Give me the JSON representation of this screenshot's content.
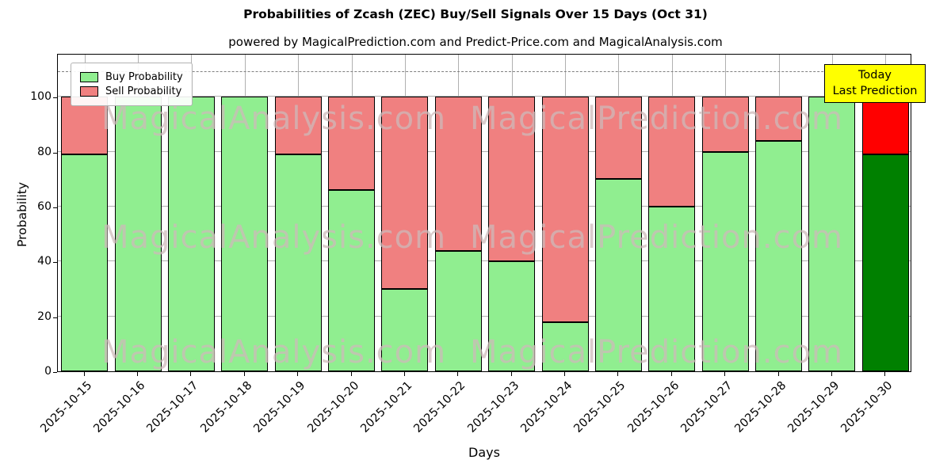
{
  "chart_data": {
    "type": "bar",
    "stacked": true,
    "title": "Probabilities of Zcash (ZEC) Buy/Sell Signals Over 15 Days (Oct 31)",
    "subtitle": "powered by MagicalPrediction.com and Predict-Price.com and MagicalAnalysis.com",
    "xlabel": "Days",
    "ylabel": "Probability",
    "categories": [
      "2025-10-15",
      "2025-10-16",
      "2025-10-17",
      "2025-10-18",
      "2025-10-19",
      "2025-10-20",
      "2025-10-21",
      "2025-10-22",
      "2025-10-23",
      "2025-10-24",
      "2025-10-25",
      "2025-10-26",
      "2025-10-27",
      "2025-10-28",
      "2025-10-29",
      "2025-10-30"
    ],
    "series": [
      {
        "name": "Buy Probability",
        "color": "#90EE90",
        "today_color": "#008000",
        "values": [
          79,
          100,
          100,
          100,
          79,
          66,
          30,
          44,
          40,
          18,
          70,
          60,
          80,
          84,
          100,
          79
        ]
      },
      {
        "name": "Sell Probability",
        "color": "#F08080",
        "today_color": "#FF0000",
        "values": [
          21,
          0,
          0,
          0,
          21,
          34,
          70,
          56,
          60,
          82,
          30,
          40,
          20,
          16,
          0,
          21
        ]
      }
    ],
    "ylim": [
      0,
      116
    ],
    "yticks": [
      0,
      20,
      40,
      60,
      80,
      100
    ],
    "grid": true,
    "dashed_line_y": 110,
    "legend_position": "upper left",
    "annotation": {
      "lines": [
        "Today",
        "Last Prediction"
      ],
      "bg": "#FFFF00"
    },
    "watermarks": [
      "MagicalAnalysis.com",
      "MagicalPrediction.com"
    ]
  }
}
